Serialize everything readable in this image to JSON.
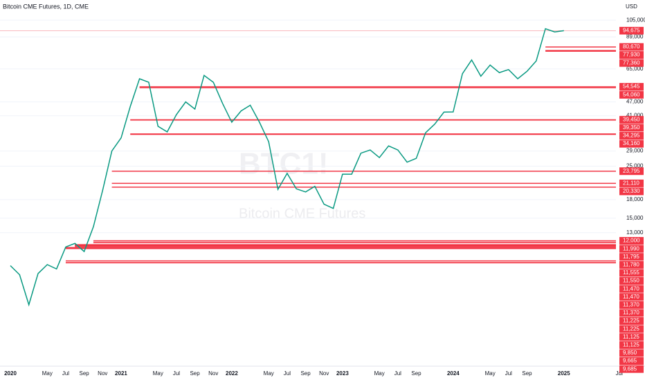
{
  "chart_data": {
    "type": "line",
    "title": "Bitcoin CME Futures, 1D, CME",
    "y_unit": "USD",
    "watermark_symbol": "BTC1!",
    "watermark_name": "Bitcoin CME Futures",
    "log_scale": true,
    "grid": true,
    "categories": [
      "2020",
      null,
      null,
      null,
      "May",
      null,
      "Jul",
      null,
      "Sep",
      null,
      "Nov",
      null,
      "2021",
      null,
      null,
      null,
      "May",
      null,
      "Jul",
      null,
      "Sep",
      null,
      "Nov",
      null,
      "2022",
      null,
      null,
      null,
      "May",
      null,
      "Jul",
      null,
      "Sep",
      null,
      "Nov",
      null,
      "2023",
      null,
      null,
      null,
      "May",
      null,
      "Jul",
      null,
      "Sep",
      null,
      null,
      null,
      "2024",
      null,
      null,
      null,
      "May",
      null,
      "Jul",
      null,
      "Sep",
      null,
      null,
      null,
      "2025",
      null,
      null,
      null,
      null,
      null,
      "Jul"
    ],
    "series": [
      {
        "name": "BTC1!",
        "color": "#089981",
        "values": [
          9400,
          8600,
          6400,
          8700,
          9500,
          9100,
          11300,
          11700,
          10800,
          13800,
          19700,
          29000,
          33000,
          45000,
          59000,
          57000,
          37000,
          35000,
          41500,
          47000,
          43800,
          61000,
          57000,
          46300,
          38500,
          43000,
          45500,
          38500,
          31800,
          19900,
          23300,
          20000,
          19400,
          20500,
          17200,
          16500,
          23100,
          23100,
          28400,
          29300,
          27200,
          30500,
          29300,
          26000,
          27000,
          34700,
          37800,
          42500,
          42600,
          62000,
          71000,
          60500,
          67500,
          62700,
          64600,
          59000,
          63500,
          70300,
          96500,
          93500,
          94675,
          null,
          null,
          null,
          null,
          null,
          null
        ]
      }
    ],
    "ylim": [
      3500,
      128000
    ],
    "yticks": [
      {
        "value": 105000,
        "label": "105,000"
      },
      {
        "value": 89000,
        "label": "89,000"
      },
      {
        "value": 65000,
        "label": "65,000"
      },
      {
        "value": 47000,
        "label": "47,000"
      },
      {
        "value": 41000,
        "label": "41,000"
      },
      {
        "value": 29000,
        "label": "29,000"
      },
      {
        "value": 25000,
        "label": "25,000"
      },
      {
        "value": 18000,
        "label": "18,000"
      },
      {
        "value": 15000,
        "label": "15,000"
      },
      {
        "value": 13000,
        "label": "13,000"
      }
    ],
    "last_price": {
      "value": 94675,
      "label": "94,675"
    },
    "level_color": "#f23645",
    "levels": [
      {
        "value": 80670,
        "label": "80,670"
      },
      {
        "value": 77930,
        "label": "77,930"
      },
      {
        "value": 77360,
        "label": "77,360"
      },
      {
        "value": 54545,
        "label": "54,545"
      },
      {
        "value": 54060,
        "label": "54,060"
      },
      {
        "value": 39450,
        "label": "39,450"
      },
      {
        "value": 39350,
        "label": "39,350"
      },
      {
        "value": 34295,
        "label": "34,295"
      },
      {
        "value": 34160,
        "label": "34,160"
      },
      {
        "value": 23795,
        "label": "23,795"
      },
      {
        "value": 21110,
        "label": "21,110"
      },
      {
        "value": 20330,
        "label": "20,330"
      },
      {
        "value": 12000,
        "label": "12,000"
      },
      {
        "value": 11990,
        "label": "11,990"
      },
      {
        "value": 11795,
        "label": "11,795"
      },
      {
        "value": 11780,
        "label": "11,780"
      },
      {
        "value": 11555,
        "label": "11,555"
      },
      {
        "value": 11550,
        "label": "11,550"
      },
      {
        "value": 11470,
        "label": "11,470"
      },
      {
        "value": 11470,
        "label": "11,470"
      },
      {
        "value": 11370,
        "label": "11,370"
      },
      {
        "value": 11370,
        "label": "11,370"
      },
      {
        "value": 11225,
        "label": "11,225"
      },
      {
        "value": 11225,
        "label": "11,225"
      },
      {
        "value": 11125,
        "label": "11,125"
      },
      {
        "value": 11125,
        "label": "11,125"
      },
      {
        "value": 9850,
        "label": "9,850"
      },
      {
        "value": 9665,
        "label": "9,665"
      },
      {
        "value": 9685,
        "label": "9,685"
      }
    ]
  }
}
